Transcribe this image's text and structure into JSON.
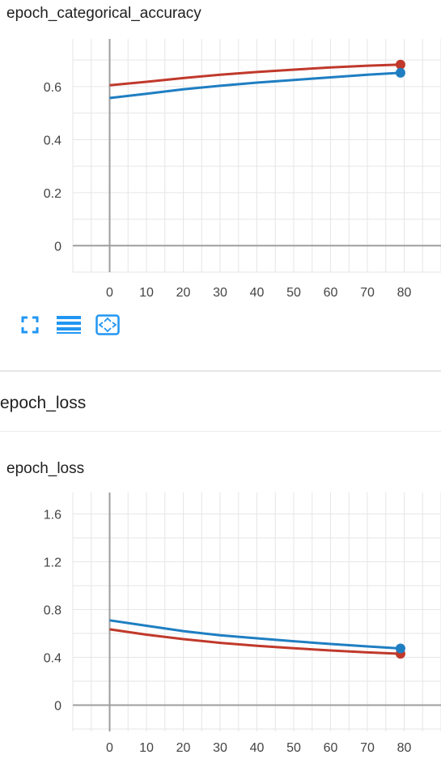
{
  "chart_data": [
    {
      "type": "line",
      "title": "epoch_categorical_accuracy",
      "xlim": [
        -10,
        90
      ],
      "ylim": [
        -0.1,
        0.78
      ],
      "xticks": [
        0,
        10,
        20,
        30,
        40,
        50,
        60,
        70,
        80
      ],
      "yticks": [
        0,
        0.2,
        0.4,
        0.6
      ],
      "ytick_labels": [
        "0",
        "0.2",
        "0.4",
        "0.6"
      ],
      "grid": true,
      "series": [
        {
          "color": "#c0392b",
          "x": [
            0,
            10,
            20,
            30,
            40,
            50,
            60,
            70,
            79
          ],
          "y": [
            0.605,
            0.618,
            0.632,
            0.645,
            0.655,
            0.664,
            0.672,
            0.679,
            0.683
          ]
        },
        {
          "color": "#1f7ec2",
          "x": [
            0,
            10,
            20,
            30,
            40,
            50,
            60,
            70,
            79
          ],
          "y": [
            0.557,
            0.573,
            0.59,
            0.603,
            0.615,
            0.625,
            0.635,
            0.645,
            0.652
          ]
        }
      ]
    },
    {
      "type": "line",
      "title": "epoch_loss",
      "xlim": [
        -10,
        90
      ],
      "ylim": [
        -0.22,
        1.78
      ],
      "xticks": [
        0,
        10,
        20,
        30,
        40,
        50,
        60,
        70,
        80
      ],
      "yticks": [
        0,
        0.4,
        0.8,
        1.2,
        1.6
      ],
      "ytick_labels": [
        "0",
        "0.4",
        "0.8",
        "1.2",
        "1.6"
      ],
      "grid": true,
      "series": [
        {
          "color": "#c0392b",
          "x": [
            0,
            10,
            20,
            30,
            40,
            50,
            60,
            70,
            79
          ],
          "y": [
            0.635,
            0.59,
            0.553,
            0.522,
            0.497,
            0.476,
            0.458,
            0.442,
            0.43
          ]
        },
        {
          "color": "#1f7ec2",
          "x": [
            0,
            10,
            20,
            30,
            40,
            50,
            60,
            70,
            79
          ],
          "y": [
            0.71,
            0.665,
            0.62,
            0.585,
            0.56,
            0.535,
            0.512,
            0.492,
            0.475
          ]
        }
      ]
    }
  ],
  "section": {
    "title": "epoch_loss"
  },
  "toolbar": {
    "icons": [
      "fit-screen-icon",
      "menu-lines-icon",
      "fit-domain-icon"
    ],
    "accent": "#2196f3"
  }
}
